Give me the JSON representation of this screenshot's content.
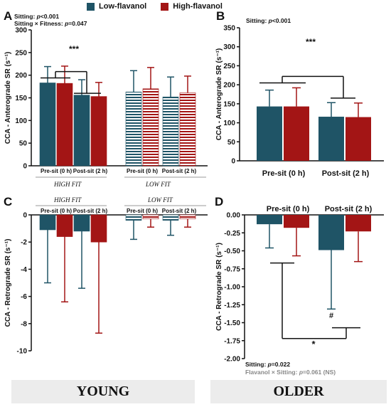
{
  "colors": {
    "low": "#1f5466",
    "high": "#a31515"
  },
  "legend": {
    "low": "Low-flavanol",
    "high": "High-flavanol"
  },
  "footer": {
    "young": "YOUNG",
    "older": "OLDER"
  },
  "chart_data": [
    {
      "panel": "A",
      "type": "bar",
      "group": "young",
      "ylabel": "CCA - Anterograde SR (s⁻¹)",
      "ylim": [
        0,
        300
      ],
      "yticks": [
        0,
        50,
        100,
        150,
        200,
        250,
        300
      ],
      "stats_lines": [
        "Sitting: p<0.001",
        "Sitting × Fitness: p=0.047"
      ],
      "fitness_groups": [
        "HIGH FIT",
        "LOW FIT"
      ],
      "timepoints": [
        "Pre-sit (0 h)",
        "Post-sit (2 h)"
      ],
      "series": [
        {
          "name": "Low-flavanol",
          "hatched": [
            false,
            false,
            true,
            true
          ],
          "values": [
            183,
            156,
            163,
            152
          ],
          "error_upper": [
            219,
            190,
            210,
            196
          ]
        },
        {
          "name": "High-flavanol",
          "hatched": [
            false,
            false,
            true,
            true
          ],
          "values": [
            182,
            153,
            170,
            161
          ],
          "error_upper": [
            220,
            184,
            217,
            198
          ]
        }
      ],
      "significance": "***"
    },
    {
      "panel": "B",
      "type": "bar",
      "group": "older",
      "ylabel": "CCA - Anterograde SR (s⁻¹)",
      "ylim": [
        0,
        350
      ],
      "yticks": [
        0,
        50,
        100,
        150,
        200,
        250,
        300,
        350
      ],
      "stats_lines": [
        "Sitting: p<0.001"
      ],
      "categories": [
        "Pre-sit (0 h)",
        "Post-sit (2 h)"
      ],
      "series": [
        {
          "name": "Low-flavanol",
          "values": [
            143,
            116
          ],
          "error_upper": [
            186,
            153
          ]
        },
        {
          "name": "High-flavanol",
          "values": [
            143,
            115
          ],
          "error_upper": [
            192,
            152
          ]
        }
      ],
      "significance": "***"
    },
    {
      "panel": "C",
      "type": "bar",
      "group": "young",
      "ylabel": "CCA - Retrograde SR (s⁻¹)",
      "ylim": [
        -10,
        0
      ],
      "yticks": [
        0,
        -2,
        -4,
        -6,
        -8,
        -10
      ],
      "fitness_groups": [
        "HIGH FIT",
        "LOW FIT"
      ],
      "timepoints": [
        "Pre-sit (0 h)",
        "Post-sit (2 h)"
      ],
      "series": [
        {
          "name": "Low-flavanol",
          "hatched": [
            false,
            false,
            true,
            true
          ],
          "values": [
            -1.1,
            -1.2,
            -0.4,
            -0.4
          ],
          "error_lower": [
            -5.0,
            -5.4,
            -1.8,
            -1.5
          ]
        },
        {
          "name": "High-flavanol",
          "hatched": [
            false,
            false,
            true,
            true
          ],
          "values": [
            -1.6,
            -2.0,
            -0.3,
            -0.3
          ],
          "error_lower": [
            -6.4,
            -8.7,
            -0.9,
            -0.9
          ]
        }
      ]
    },
    {
      "panel": "D",
      "type": "bar",
      "group": "older",
      "ylabel": "CCA - Retrograde SR (s⁻¹)",
      "ylim": [
        -2.0,
        0
      ],
      "yticks": [
        "0.00",
        "-0.25",
        "-0.50",
        "-0.75",
        "-1.00",
        "-1.25",
        "-1.50",
        "-1.75",
        "-2.00"
      ],
      "categories": [
        "Pre-sit (0 h)",
        "Post-sit (2 h)"
      ],
      "series": [
        {
          "name": "Low-flavanol",
          "values": [
            -0.13,
            -0.49
          ],
          "error_lower": [
            -0.46,
            -1.31
          ]
        },
        {
          "name": "High-flavanol",
          "values": [
            -0.18,
            -0.23
          ],
          "error_lower": [
            -0.57,
            -0.65
          ]
        }
      ],
      "significance": "*",
      "annotation": "#",
      "stats_lines": [
        "Sitting: p=0.022",
        "Flavanol × Sitting: p=0.061 (NS)"
      ]
    }
  ]
}
